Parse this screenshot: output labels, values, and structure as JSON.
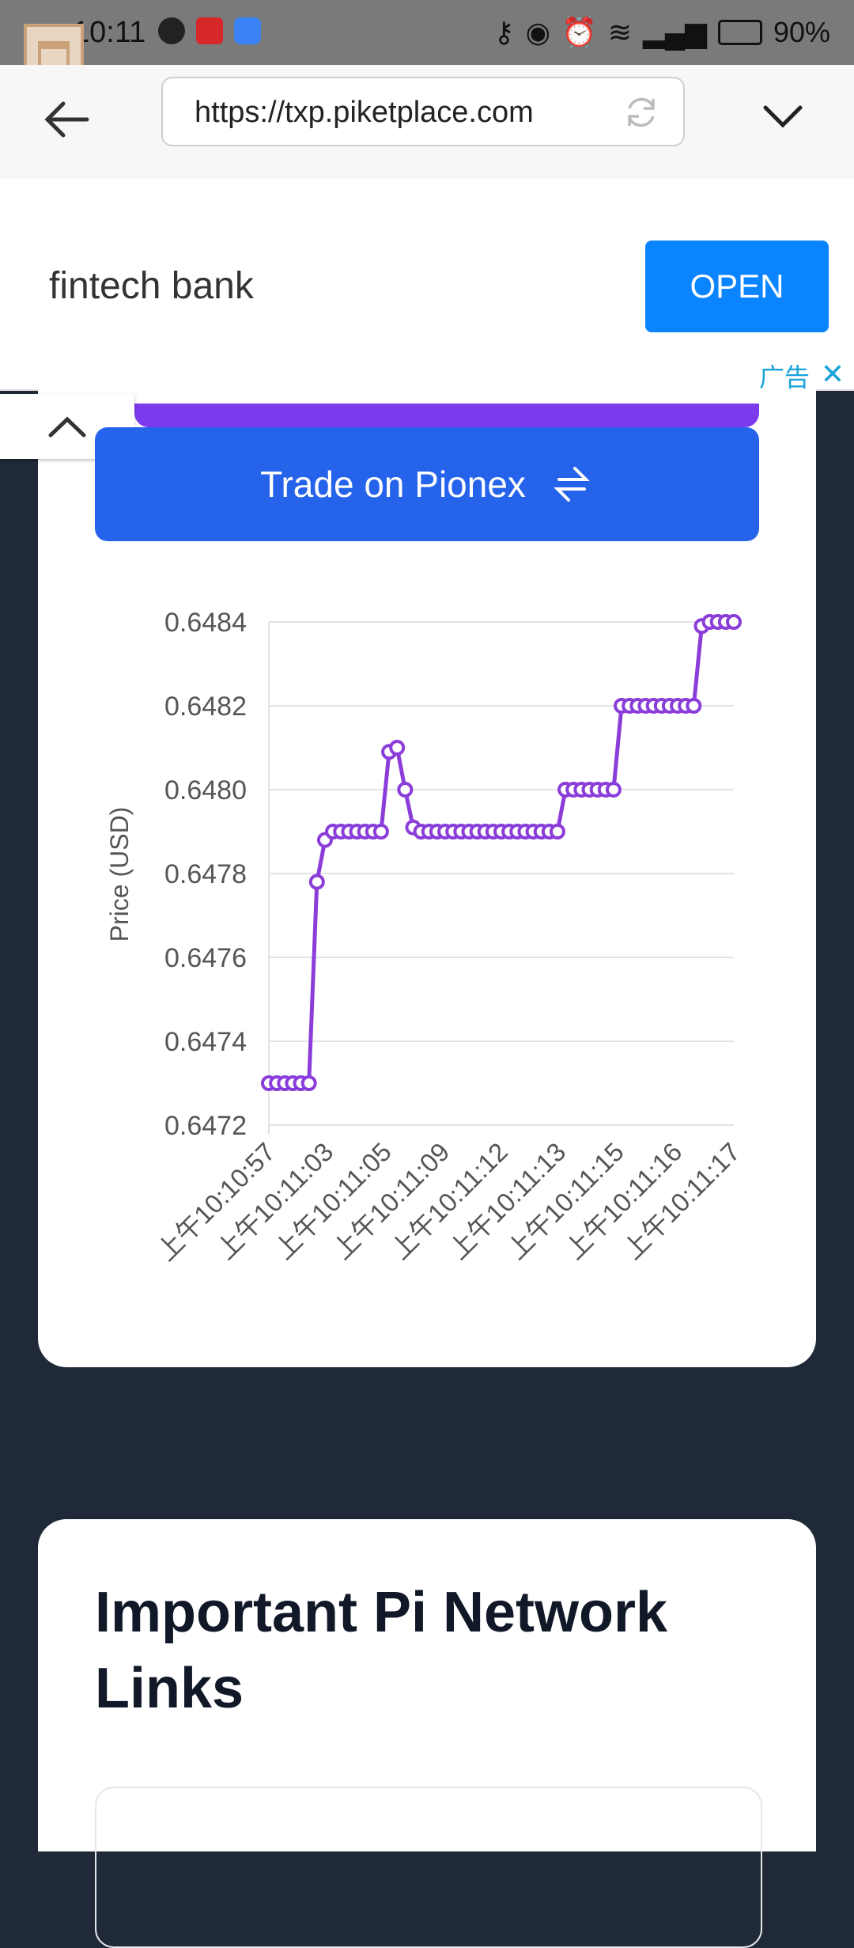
{
  "status_bar": {
    "time": "10:11",
    "battery": "90%"
  },
  "browser": {
    "url": "https://txp.piketplace.com"
  },
  "ad": {
    "text": "fintech bank",
    "button": "OPEN",
    "label": "广告"
  },
  "trade_button": {
    "label": "Trade on Pionex"
  },
  "chart_data": {
    "type": "line",
    "ylabel": "Price (USD)",
    "ylim": [
      0.6472,
      0.6484
    ],
    "yticks": [
      "0.6484",
      "0.6482",
      "0.6480",
      "0.6478",
      "0.6476",
      "0.6474",
      "0.6472"
    ],
    "xticks": [
      "上午10:10:57",
      "上午10:11:03",
      "上午10:11:05",
      "上午10:11:09",
      "上午10:11:12",
      "上午10:11:13",
      "上午10:11:15",
      "上午10:11:16",
      "上午10:11:17"
    ],
    "series": [
      {
        "color": "#8b3dd9",
        "values": [
          0.6473,
          0.6473,
          0.6473,
          0.6473,
          0.6473,
          0.6473,
          0.64778,
          0.64788,
          0.6479,
          0.6479,
          0.6479,
          0.6479,
          0.6479,
          0.6479,
          0.6479,
          0.64809,
          0.6481,
          0.648,
          0.64791,
          0.6479,
          0.6479,
          0.6479,
          0.6479,
          0.6479,
          0.6479,
          0.6479,
          0.6479,
          0.6479,
          0.6479,
          0.6479,
          0.6479,
          0.6479,
          0.6479,
          0.6479,
          0.6479,
          0.6479,
          0.6479,
          0.648,
          0.648,
          0.648,
          0.648,
          0.648,
          0.648,
          0.648,
          0.6482,
          0.6482,
          0.6482,
          0.6482,
          0.6482,
          0.6482,
          0.6482,
          0.6482,
          0.6482,
          0.6482,
          0.64839,
          0.6484,
          0.6484,
          0.6484,
          0.6484
        ]
      }
    ]
  },
  "links_section": {
    "title": "Important Pi Network Links"
  }
}
